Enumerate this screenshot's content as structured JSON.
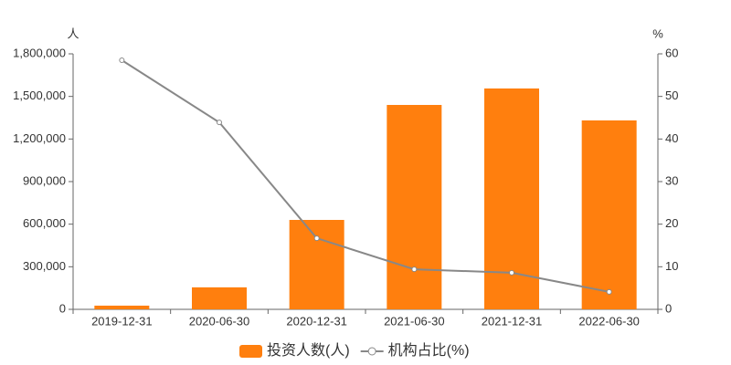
{
  "chart_data": {
    "type": "bar-line",
    "y_unit": "人",
    "y2_unit": "%",
    "categories": [
      "2019-12-31",
      "2020-06-30",
      "2020-12-31",
      "2021-06-30",
      "2021-12-31",
      "2022-06-30"
    ],
    "series": [
      {
        "name": "投资人数(人)",
        "type": "bar",
        "color": "#ff7f0e",
        "values": [
          26000,
          155000,
          630000,
          1440000,
          1556000,
          1331000
        ]
      },
      {
        "name": "机构占比(%)",
        "type": "line",
        "color": "#888888",
        "axis": "y2",
        "values": [
          58.5,
          43.9,
          16.7,
          9.4,
          8.6,
          4.1
        ]
      }
    ],
    "ylim": [
      0,
      1800000
    ],
    "yticks": [
      {
        "value": 0,
        "label": "0"
      },
      {
        "value": 300000,
        "label": "300,000"
      },
      {
        "value": 600000,
        "label": "600,000"
      },
      {
        "value": 900000,
        "label": "900,000"
      },
      {
        "value": 1200000,
        "label": "1,200,000"
      },
      {
        "value": 1500000,
        "label": "1,500,000"
      },
      {
        "value": 1800000,
        "label": "1,800,000"
      }
    ],
    "y2lim": [
      0,
      60
    ],
    "y2ticks": [
      0,
      10,
      20,
      30,
      40,
      50,
      60
    ],
    "grid": false,
    "legend": "bottom"
  }
}
